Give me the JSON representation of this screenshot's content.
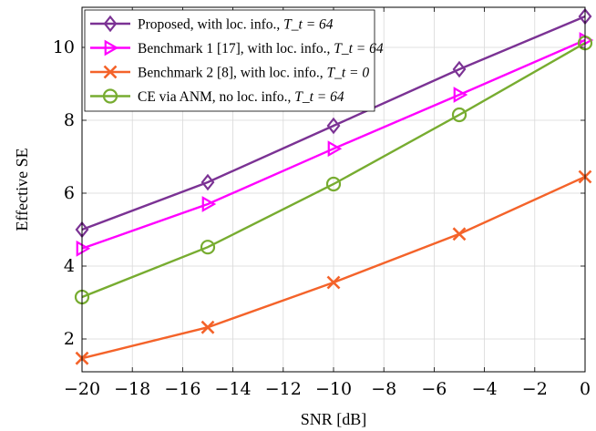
{
  "chart_data": {
    "type": "line",
    "xlabel": "SNR [dB]",
    "ylabel": "Effective SE",
    "xlim": [
      -20,
      0
    ],
    "ylim": [
      1.1,
      11.1
    ],
    "xticks": [
      -20,
      -18,
      -16,
      -14,
      -12,
      -10,
      -8,
      -6,
      -4,
      -2,
      0
    ],
    "xtick_labels": [
      "−20",
      "−18",
      "−16",
      "−14",
      "−12",
      "−10",
      "−8",
      "−6",
      "−4",
      "−2",
      "0"
    ],
    "yticks": [
      2,
      4,
      6,
      8,
      10
    ],
    "ytick_labels": [
      "2",
      "4",
      "6",
      "8",
      "10"
    ],
    "grid": true,
    "legend_position": "top-left",
    "x": [
      -20,
      -15,
      -10,
      -5,
      0
    ],
    "series": [
      {
        "name": "Proposed, with loc. info., ",
        "name_math": "T_t = 64",
        "color": "#7b3294",
        "marker": "diamond",
        "values": [
          5.0,
          6.3,
          7.85,
          9.4,
          10.85
        ]
      },
      {
        "name": "Benchmark 1 [17], with loc. info., ",
        "name_math": "T_t = 64",
        "color": "#ff00ff",
        "marker": "triangle-right",
        "values": [
          4.48,
          5.7,
          7.22,
          8.7,
          10.2
        ]
      },
      {
        "name": "Benchmark 2 [8], with loc. info., ",
        "name_math": "T_t = 0",
        "color": "#f4632a",
        "marker": "x",
        "values": [
          1.47,
          2.32,
          3.55,
          4.88,
          6.45
        ]
      },
      {
        "name": "CE via ANM, no loc. info., ",
        "name_math": "T_t = 64",
        "color": "#77ac30",
        "marker": "circle",
        "values": [
          3.15,
          4.52,
          6.25,
          8.15,
          10.12
        ]
      }
    ]
  }
}
